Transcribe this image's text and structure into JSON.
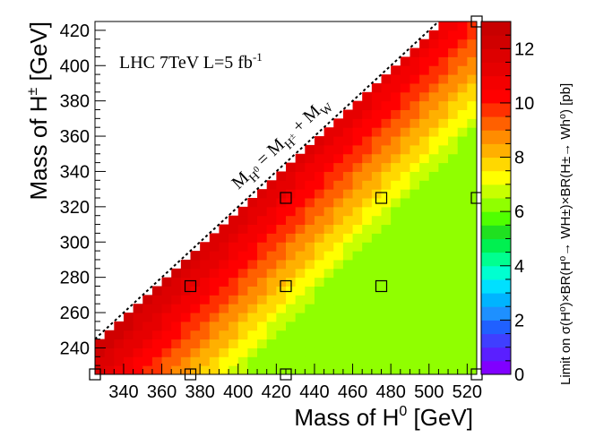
{
  "chart_data": {
    "type": "heatmap",
    "title": "",
    "annotation": {
      "label": "LHC 7TeV L=5 fb",
      "superscript": "-1"
    },
    "diagonal_label": {
      "lhs": "M",
      "lhs_sub": "H",
      "lhs_sub_sup": "0",
      "eq": " = M",
      "rhs_sub": "H",
      "rhs_sub_sup": "±",
      "plus": " + M",
      "w_sub": "W"
    },
    "xlabel": {
      "text": "Mass of H",
      "sup": "0",
      "unit": " [GeV]"
    },
    "ylabel": {
      "text": "Mass of H",
      "sup": "±",
      "unit": " [GeV]"
    },
    "zlabel": "Limit on σ(H⁰)×BR(H⁰→ WH±)×BR(H±→ Wh⁰) [pb]",
    "xlim": [
      325,
      525
    ],
    "ylim": [
      225,
      425
    ],
    "zlim": [
      0,
      13
    ],
    "x_ticks": [
      340,
      360,
      380,
      400,
      420,
      440,
      460,
      480,
      500,
      520
    ],
    "y_ticks": [
      240,
      260,
      280,
      300,
      320,
      340,
      360,
      380,
      400,
      420
    ],
    "z_ticks": [
      0,
      2,
      4,
      6,
      8,
      10,
      12
    ],
    "diagonal_line": {
      "description": "M_H0 = M_H± + M_W",
      "points": [
        [
          325,
          245
        ],
        [
          505,
          425
        ]
      ]
    },
    "grid_points": [
      [
        325,
        225
      ],
      [
        525,
        425
      ],
      [
        375,
        275
      ],
      [
        425,
        325
      ],
      [
        475,
        325
      ],
      [
        525,
        325
      ],
      [
        425,
        275
      ],
      [
        475,
        275
      ],
      [
        375,
        225
      ],
      [
        425,
        225
      ],
      [
        525,
        225
      ]
    ],
    "z_function_description": "limit rises from ~7 to ~12.5 pb moving from high M_H0 toward the kinematic boundary; 0.5 pb color bins"
  }
}
